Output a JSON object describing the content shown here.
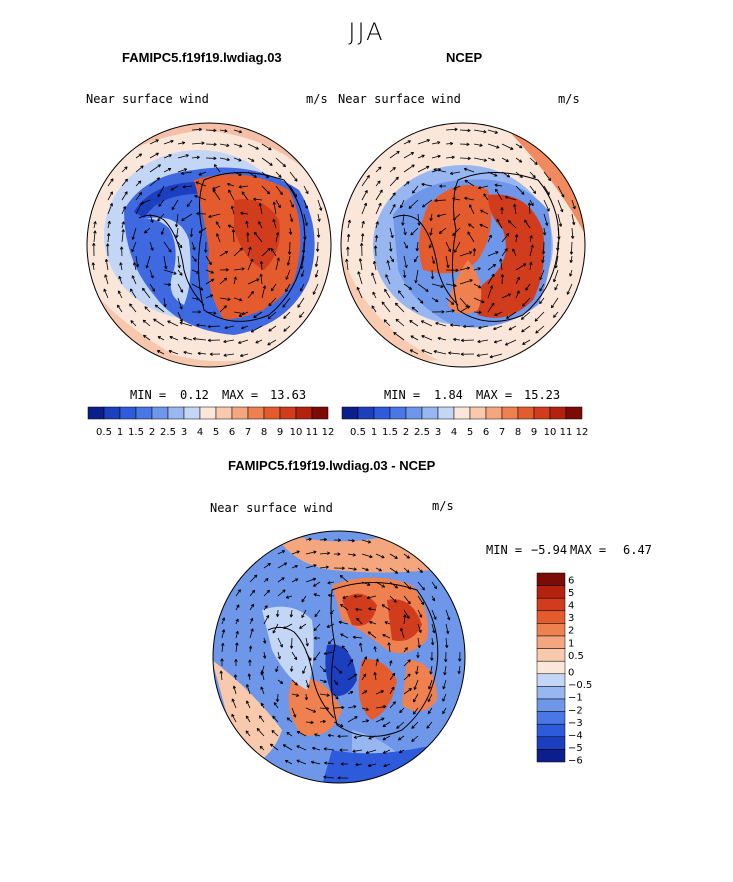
{
  "season": "JJA",
  "colors": {
    "land_outline": "#000000",
    "scale": [
      "#0b1f8c",
      "#1b3fbf",
      "#2e5bdb",
      "#4977e6",
      "#6e97ea",
      "#98b6f0",
      "#c4d6f6",
      "#fbe6da",
      "#f8c9ad",
      "#f4a77f",
      "#ef8050",
      "#e45c2e",
      "#d13c1c",
      "#b4220f",
      "#7c0b05"
    ]
  },
  "panels": [
    {
      "title": "FAMIPC5.f19f19.lwdiag.03",
      "variable": "Near surface wind",
      "units": "m/s",
      "min_label": "MIN =",
      "min_value": "0.12",
      "max_label": "MAX =",
      "max_value": "13.63",
      "colorbar_labels": [
        "0.5",
        "1",
        "1.5",
        "2",
        "2.5",
        "3",
        "4",
        "5",
        "6",
        "7",
        "8",
        "9",
        "10",
        "11",
        "12"
      ]
    },
    {
      "title": "NCEP",
      "variable": "Near surface wind",
      "units": "m/s",
      "min_label": "MIN =",
      "min_value": "1.84",
      "max_label": "MAX =",
      "max_value": "15.23",
      "colorbar_labels": [
        "0.5",
        "1",
        "1.5",
        "2",
        "2.5",
        "3",
        "4",
        "5",
        "6",
        "7",
        "8",
        "9",
        "10",
        "11",
        "12"
      ]
    },
    {
      "title": "FAMIPC5.f19f19.lwdiag.03 - NCEP",
      "variable": "Near surface wind",
      "units": "m/s",
      "min_label": "MIN =",
      "min_value": "−5.94",
      "max_label": "MAX =",
      "max_value": "6.47",
      "colorbar_labels": [
        "6",
        "5",
        "4",
        "3",
        "2",
        "1",
        "0.5",
        "0",
        "−0.5",
        "−1",
        "−2",
        "−3",
        "−4",
        "−5",
        "−6"
      ]
    }
  ]
}
